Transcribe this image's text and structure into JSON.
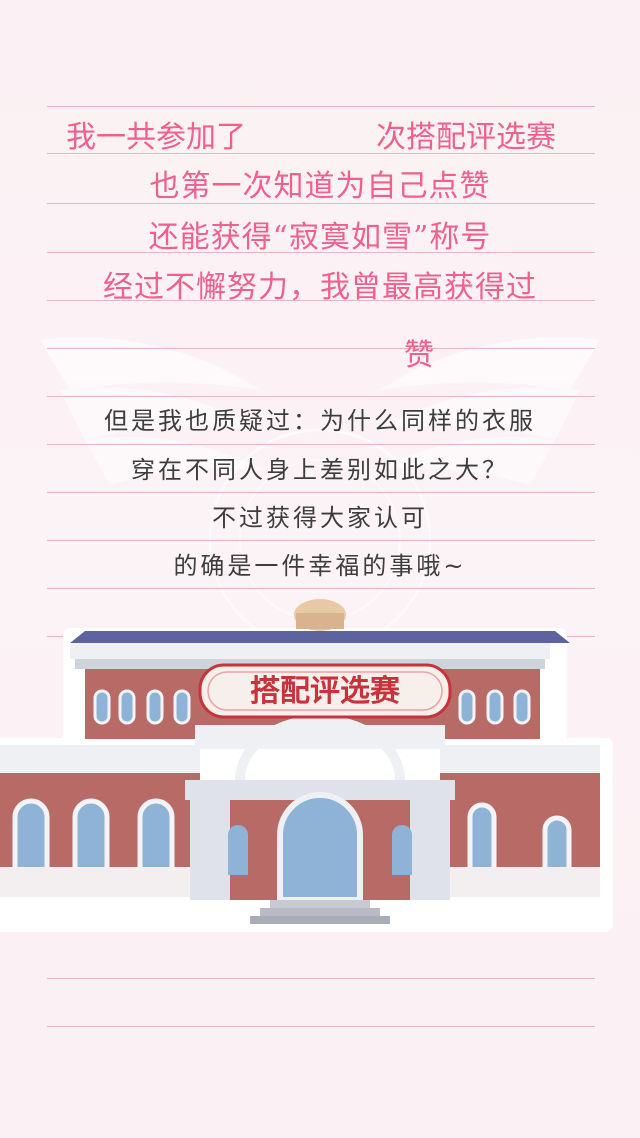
{
  "diary": {
    "line1_left": "我一共参加了",
    "line1_right": "次搭配评选赛",
    "line2": "也第一次知道为自己点赞",
    "line3": "还能获得“寂寞如雪”称号",
    "line4": "经过不懈努力，我曾最高获得过",
    "line5": "赞",
    "body_lines": [
      "但是我也质疑过：为什么同样的衣服",
      "穿在不同人身上差别如此之大？",
      "不过获得大家认可",
      "的确是一件幸福的事哦~"
    ]
  },
  "building": {
    "sign_label": "搭配评选赛",
    "sign_color": "#c8323c",
    "wall_color": "#b86b66",
    "roof_color": "#5c63a0"
  },
  "colors": {
    "handwriting": "#f0608c",
    "ruled_line": "#e3b6c2",
    "body_text": "#3d3d3d"
  }
}
